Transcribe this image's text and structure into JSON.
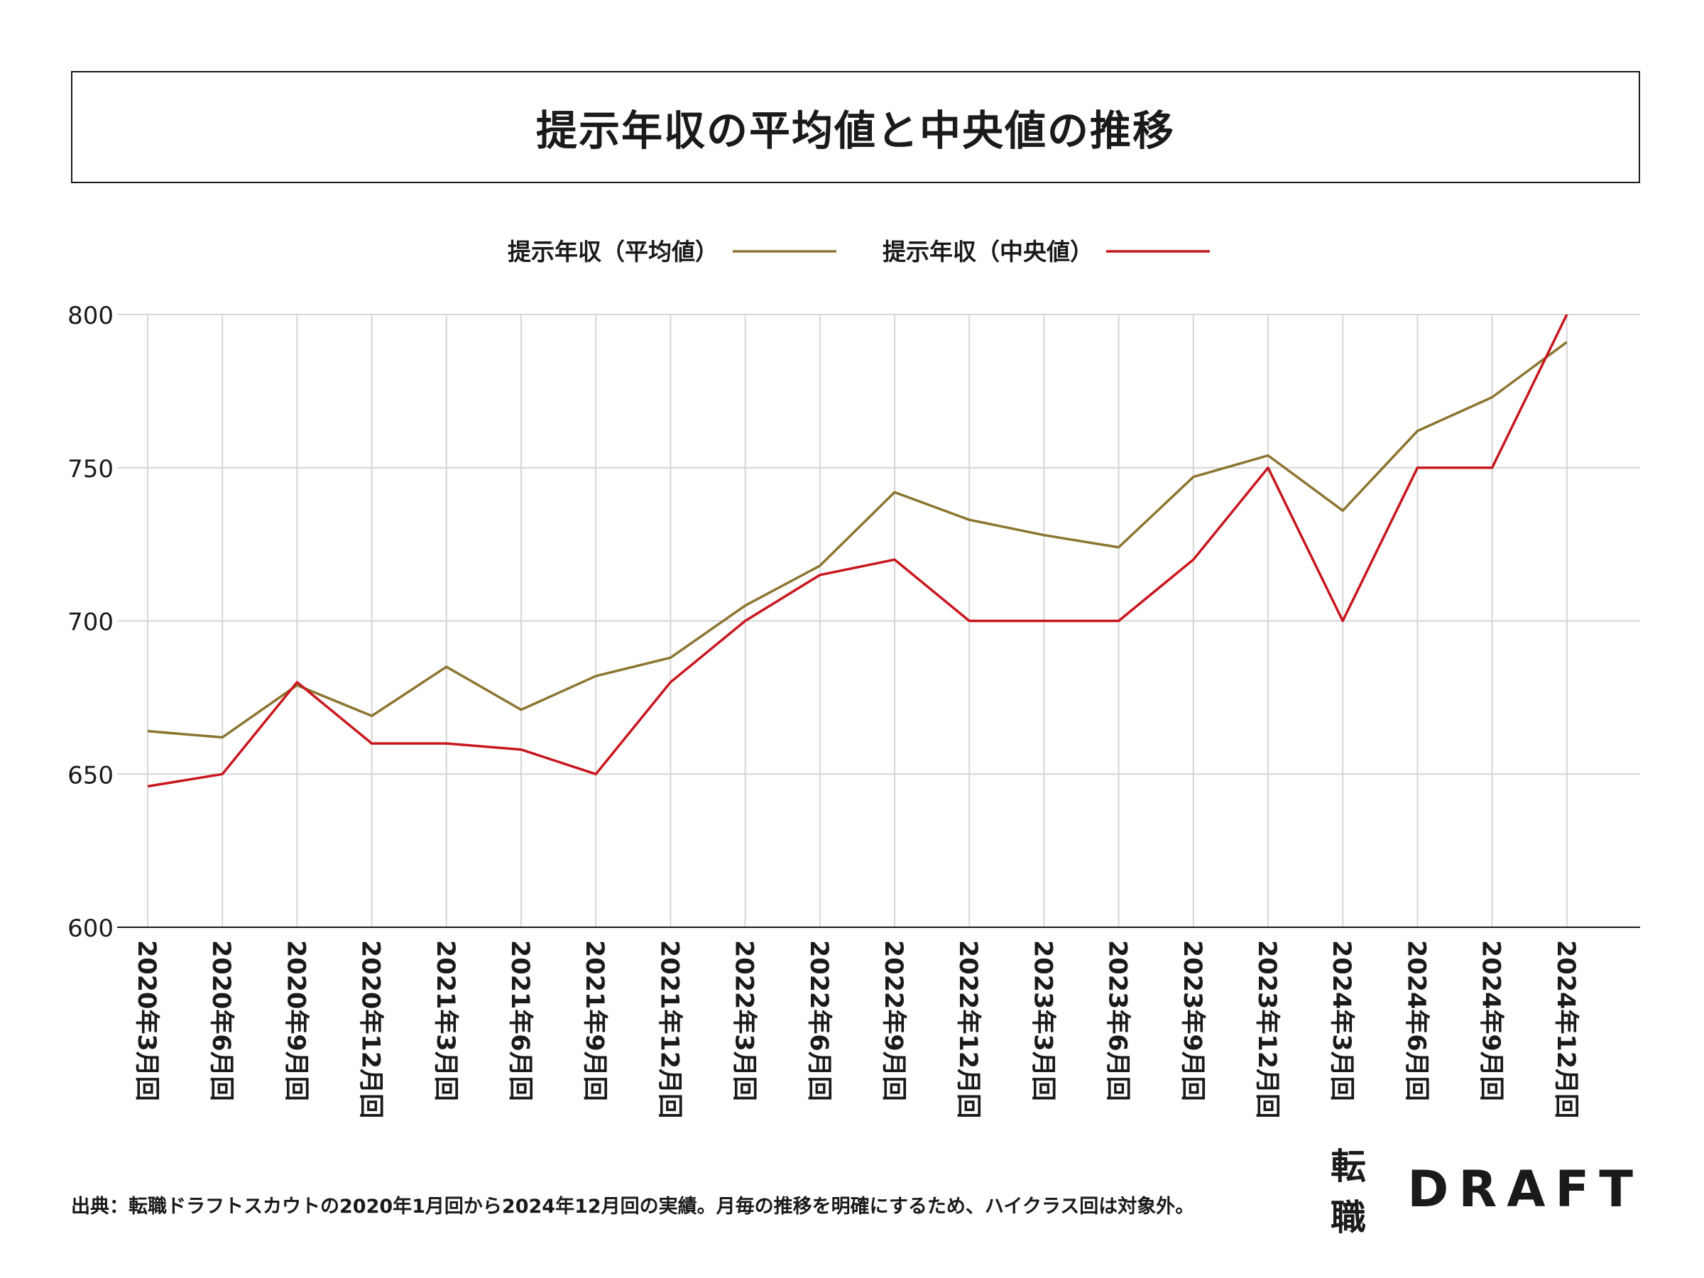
{
  "title": "提示年収の平均値と中央値の推移",
  "source_note": "出典：転職ドラフトスカウトの2020年1月回から2024年12月回の実績。月毎の推移を明確にするため、ハイクラス回は対象外。",
  "logo": {
    "jp": "転職",
    "en": "DRAFT"
  },
  "colors": {
    "average": "#8b7530",
    "median": "#c8161d"
  },
  "chart_data": {
    "type": "line",
    "categories": [
      "2020年3月回",
      "2020年6月回",
      "2020年9月回",
      "2020年12月回",
      "2021年3月回",
      "2021年6月回",
      "2021年9月回",
      "2021年12月回",
      "2022年3月回",
      "2022年6月回",
      "2022年9月回",
      "2022年12月回",
      "2023年3月回",
      "2023年6月回",
      "2023年9月回",
      "2023年12月回",
      "2024年3月回",
      "2024年6月回",
      "2024年9月回",
      "2024年12月回"
    ],
    "series": [
      {
        "name": "提示年収（平均値）",
        "color": "#8b7530",
        "values": [
          664,
          662,
          679,
          669,
          685,
          671,
          682,
          688,
          705,
          718,
          742,
          733,
          728,
          724,
          747,
          754,
          736,
          762,
          773,
          791
        ]
      },
      {
        "name": "提示年収（中央値）",
        "color": "#c8161d",
        "values": [
          646,
          650,
          680,
          660,
          660,
          658,
          650,
          680,
          700,
          715,
          720,
          700,
          700,
          700,
          720,
          750,
          700,
          750,
          750,
          800
        ]
      }
    ],
    "yticks": [
      600,
      650,
      700,
      750,
      800
    ],
    "ylim": [
      600,
      800
    ],
    "grid": true,
    "legend_position": "top-center"
  }
}
